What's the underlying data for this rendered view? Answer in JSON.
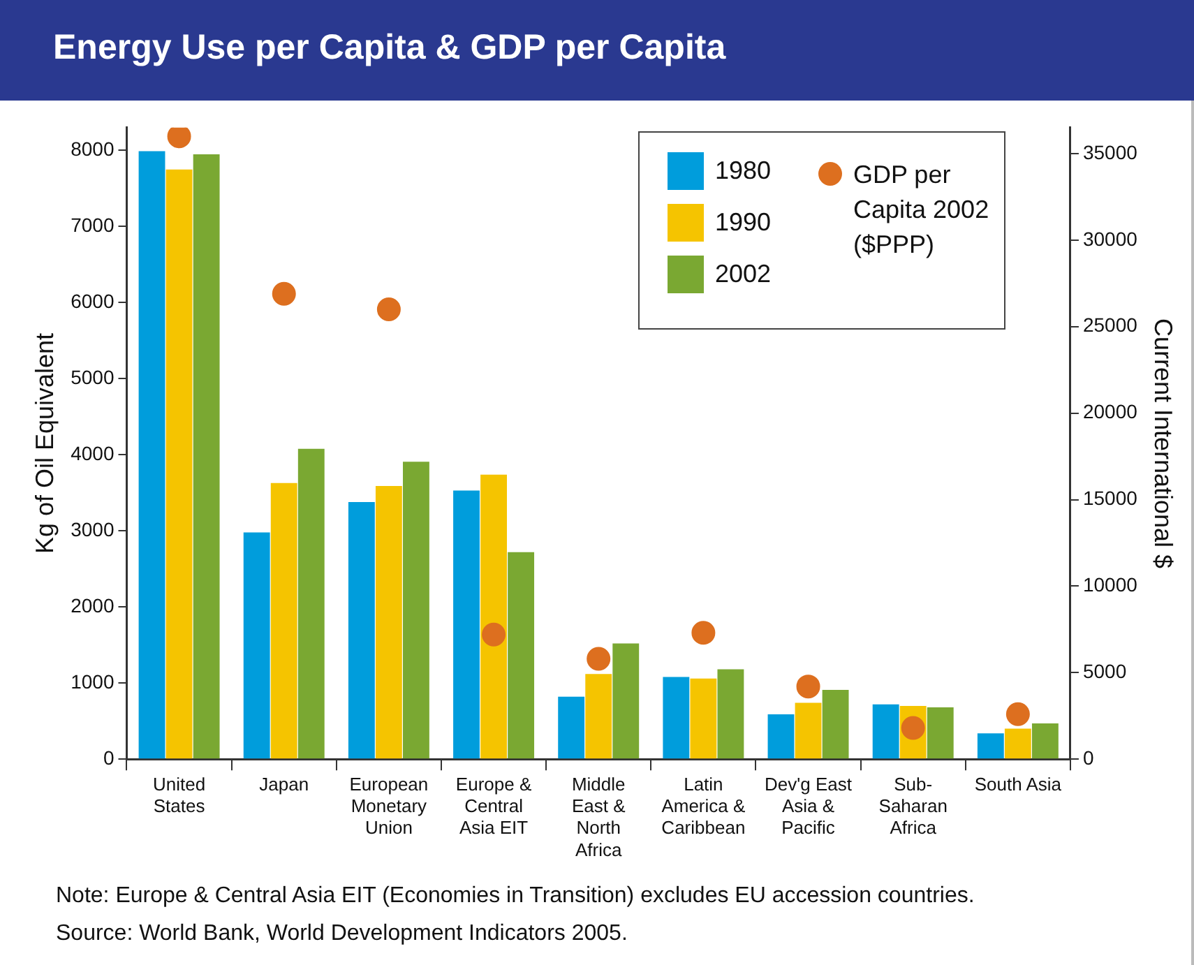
{
  "chart_data": {
    "type": "bar",
    "title": "Energy Use per Capita & GDP per Capita",
    "categories": [
      "United States",
      "Japan",
      "European Monetary Union",
      "Europe & Central Asia EIT",
      "Middle East & North Africa",
      "Latin America & Caribbean",
      "Dev'g East Asia & Pacific",
      "Sub-Saharan Africa",
      "South Asia"
    ],
    "series": [
      {
        "name": "1980",
        "color": "#009ddc",
        "values": [
          7990,
          2980,
          3380,
          3530,
          820,
          1080,
          590,
          720,
          340
        ]
      },
      {
        "name": "1990",
        "color": "#f5c400",
        "values": [
          7750,
          3630,
          3590,
          3740,
          1120,
          1060,
          740,
          700,
          400
        ]
      },
      {
        "name": "2002",
        "color": "#7aa832",
        "values": [
          7950,
          4080,
          3910,
          2720,
          1520,
          1180,
          910,
          680,
          470
        ]
      },
      {
        "name": "GDP per Capita 2002 ($PPP)",
        "type": "scatter",
        "axis": "y2",
        "color": "#dd6f1f",
        "values": [
          36000,
          26900,
          26000,
          7200,
          5800,
          7300,
          4200,
          1800,
          2600
        ]
      }
    ],
    "ylabel": "Kg of Oil Equivalent",
    "y2label": "Current International $",
    "ylim": [
      0,
      8300
    ],
    "yticks": [
      0,
      1000,
      2000,
      3000,
      4000,
      5000,
      6000,
      7000,
      8000
    ],
    "y2lim": [
      0,
      36500
    ],
    "y2ticks": [
      0,
      5000,
      10000,
      15000,
      20000,
      25000,
      30000,
      35000
    ],
    "grid": false,
    "legend": "top right",
    "marker": "circle",
    "annotations": [
      "Note: Europe & Central Asia EIT (Economies in Transition) excludes EU accession countries.",
      "Source: World Bank, World Development Indicators 2005."
    ]
  }
}
